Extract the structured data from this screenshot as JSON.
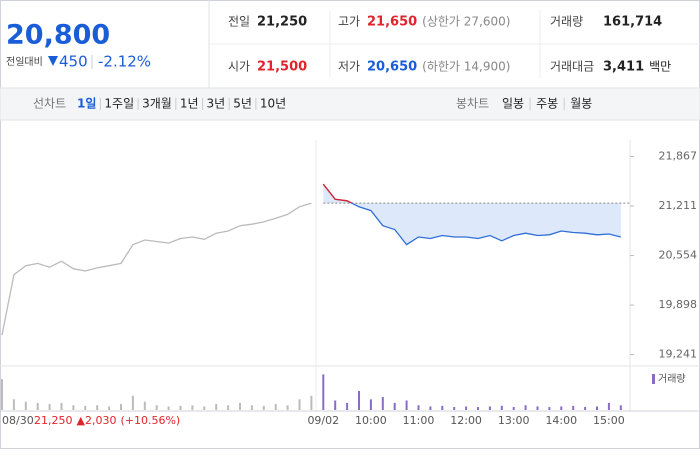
{
  "header": {
    "price": "20,800",
    "change_label": "전일대비",
    "change": "450",
    "change_rate": "-2.12%"
  },
  "info": [
    {
      "label": "전일",
      "value": "21,250"
    },
    {
      "label": "고가",
      "value": "21,650",
      "note": "(상한가 27,600)"
    },
    {
      "label": "거래량",
      "value": "161,714"
    },
    {
      "label": "시가",
      "value": "21,500"
    },
    {
      "label": "저가",
      "value": "20,650",
      "note": "(하한가 14,900)"
    },
    {
      "label": "거래대금",
      "value": "3,411",
      "unit": "백만"
    }
  ],
  "line_tabs": {
    "label": "선차트",
    "items": [
      "1일",
      "1주일",
      "3개월",
      "1년",
      "3년",
      "5년",
      "10년"
    ]
  },
  "candle_tabs": {
    "label": "봉차트",
    "items": [
      "일봉",
      "주봉",
      "월봉"
    ]
  },
  "chart_data": {
    "type": "line",
    "categories": [
      "08/30",
      null,
      null,
      null,
      null,
      null,
      null,
      null,
      null,
      null,
      null,
      null,
      null,
      null,
      null,
      null,
      null,
      null,
      null,
      null,
      null,
      null,
      null,
      null,
      null,
      null,
      null,
      "09/02",
      null,
      null,
      null,
      "10:00",
      null,
      null,
      null,
      "11:00",
      null,
      null,
      null,
      "12:00",
      null,
      null,
      null,
      "13:00",
      null,
      null,
      null,
      "14:00",
      null,
      null,
      null,
      "15:00",
      null
    ],
    "baseline": 21250,
    "series": [
      {
        "color": "#bbbbbb",
        "values": [
          19500,
          20300,
          20420,
          20450,
          20400,
          20480,
          20380,
          20350,
          20390,
          20420,
          20450,
          20700,
          20760,
          20740,
          20720,
          20780,
          20800,
          20770,
          20850,
          20880,
          20950,
          20970,
          21000,
          21050,
          21100,
          21200,
          21250,
          null,
          null,
          null,
          null,
          null,
          null,
          null,
          null,
          null,
          null,
          null,
          null,
          null,
          null,
          null,
          null,
          null,
          null,
          null,
          null,
          null,
          null,
          null,
          null,
          null,
          null
        ]
      },
      {
        "color": "#2f6fd6",
        "up_color": "#e0242c",
        "values": [
          null,
          null,
          null,
          null,
          null,
          null,
          null,
          null,
          null,
          null,
          null,
          null,
          null,
          null,
          null,
          null,
          null,
          null,
          null,
          null,
          null,
          null,
          null,
          null,
          null,
          null,
          null,
          21500,
          21300,
          21280,
          21200,
          21150,
          20950,
          20900,
          20700,
          20800,
          20780,
          20820,
          20800,
          20800,
          20780,
          20820,
          20750,
          20820,
          20850,
          20820,
          20830,
          20880,
          20860,
          20850,
          20830,
          20840,
          20800
        ]
      },
      {
        "name": "거래량",
        "color": "#8a6cc4",
        "axis": "y2",
        "values": [
          26000,
          9000,
          7000,
          6000,
          5000,
          6000,
          4000,
          3500,
          4000,
          3000,
          5000,
          12000,
          7000,
          4000,
          3000,
          3500,
          4000,
          3000,
          5000,
          4000,
          6000,
          4000,
          3500,
          5000,
          4000,
          9000,
          12000,
          30000,
          8000,
          6000,
          16000,
          9000,
          11000,
          6000,
          8000,
          4000,
          3000,
          3500,
          2500,
          3000,
          2500,
          3000,
          3500,
          2500,
          4000,
          3000,
          2500,
          3000,
          3500,
          2500,
          3000,
          6000,
          4000
        ]
      }
    ],
    "ylim": [
      19130,
      21980
    ],
    "yticks": [
      {
        "value": 21867,
        "label": "21,867"
      },
      {
        "value": 21211,
        "label": "21,211"
      },
      {
        "value": 20554,
        "label": "20,554"
      },
      {
        "value": 19898,
        "label": "19,898"
      },
      {
        "value": 19241,
        "label": "19,241"
      }
    ],
    "y2lim": [
      0,
      32000
    ],
    "grid": false,
    "footnote": {
      "close": "21,250",
      "change": "▲2,030",
      "rate": "(+10.56%)"
    }
  }
}
